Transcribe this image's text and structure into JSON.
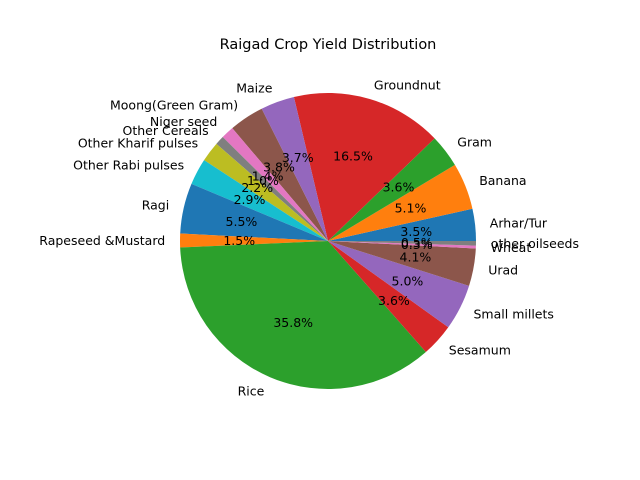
{
  "chart_data": {
    "type": "pie",
    "title": "Raigad Crop Yield Distribution",
    "start_angle_deg": 0,
    "direction": "counterclockwise",
    "slices": [
      {
        "label": "Arhar/Tur",
        "value": 3.5,
        "pct_label": "3.5%",
        "color": "#1f77b4"
      },
      {
        "label": "Banana",
        "value": 5.1,
        "pct_label": "5.1%",
        "color": "#ff7f0e"
      },
      {
        "label": "Gram",
        "value": 3.6,
        "pct_label": "3.6%",
        "color": "#2ca02c"
      },
      {
        "label": "Groundnut",
        "value": 16.5,
        "pct_label": "16.5%",
        "color": "#d62728"
      },
      {
        "label": "Maize",
        "value": 3.7,
        "pct_label": "3.7%",
        "color": "#9467bd"
      },
      {
        "label": "Moong(Green Gram)",
        "value": 3.8,
        "pct_label": "3.8%",
        "color": "#8c564b"
      },
      {
        "label": "Niger seed",
        "value": 1.4,
        "pct_label": "1.4%",
        "color": "#e377c2"
      },
      {
        "label": "Other Cereals",
        "value": 1.0,
        "pct_label": "1.0%",
        "color": "#7f7f7f"
      },
      {
        "label": "Other Kharif pulses",
        "value": 2.2,
        "pct_label": "2.2%",
        "color": "#bcbd22"
      },
      {
        "label": "Other Rabi pulses",
        "value": 2.9,
        "pct_label": "2.9%",
        "color": "#17becf"
      },
      {
        "label": "Ragi",
        "value": 5.5,
        "pct_label": "5.5%",
        "color": "#1f77b4"
      },
      {
        "label": "Rapeseed &Mustard",
        "value": 1.5,
        "pct_label": "1.5%",
        "color": "#ff7f0e"
      },
      {
        "label": "Rice",
        "value": 35.8,
        "pct_label": "35.8%",
        "color": "#2ca02c"
      },
      {
        "label": "Sesamum",
        "value": 3.6,
        "pct_label": "3.6%",
        "color": "#d62728"
      },
      {
        "label": "Small millets",
        "value": 5.0,
        "pct_label": "5.0%",
        "color": "#9467bd"
      },
      {
        "label": "Urad",
        "value": 4.1,
        "pct_label": "4.1%",
        "color": "#8c564b"
      },
      {
        "label": "Wheat",
        "value": 0.3,
        "pct_label": "0.3%",
        "color": "#e377c2"
      },
      {
        "label": "other oilseeds",
        "value": 0.5,
        "pct_label": "0.5%",
        "color": "#7f7f7f"
      }
    ]
  }
}
